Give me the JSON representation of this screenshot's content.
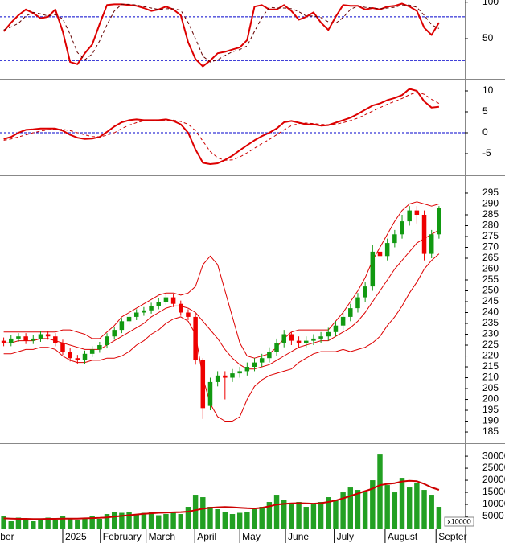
{
  "chart_data": [
    {
      "type": "line",
      "ylim": [
        -4,
        103
      ],
      "yticks": [
        50,
        100
      ],
      "xlim": [
        -0.5,
        62.5
      ],
      "reference_lines": [
        {
          "value": 80,
          "color": "#0000cc"
        },
        {
          "value": 20,
          "color": "#0000cc"
        }
      ],
      "series": [
        {
          "color": "#dd0000",
          "values": [
            60,
            72,
            82,
            90,
            85,
            78,
            80,
            90,
            60,
            18,
            15,
            30,
            42,
            70,
            96,
            97,
            97,
            96,
            95,
            92,
            88,
            90,
            94,
            90,
            82,
            45,
            22,
            12,
            20,
            30,
            32,
            35,
            38,
            48,
            94,
            96,
            90,
            90,
            96,
            88,
            76,
            80,
            86,
            72,
            62,
            80,
            96,
            95,
            95,
            90,
            92,
            90,
            94,
            95,
            98,
            94,
            88,
            65,
            55,
            72
          ]
        },
        {
          "color": "#660000",
          "dashed": true,
          "values": [
            62,
            66,
            71,
            81,
            86,
            84,
            81,
            83,
            77,
            56,
            31,
            21,
            29,
            47,
            69,
            88,
            97,
            97,
            96,
            94,
            92,
            90,
            91,
            91,
            89,
            72,
            50,
            26,
            18,
            21,
            27,
            32,
            35,
            40,
            60,
            79,
            93,
            92,
            92,
            91,
            87,
            81,
            81,
            79,
            73,
            71,
            79,
            90,
            95,
            93,
            92,
            91,
            92,
            93,
            96,
            96,
            93,
            82,
            69,
            64
          ]
        }
      ]
    },
    {
      "type": "line",
      "ylim": [
        -10,
        12.5
      ],
      "yticks": [
        -5,
        0,
        5,
        10
      ],
      "xlim": [
        -0.5,
        62.5
      ],
      "reference_lines": [
        {
          "value": 0,
          "color": "#0000cc"
        }
      ],
      "series": [
        {
          "color": "#dd0000",
          "values": [
            -1.5,
            -1,
            0,
            0.7,
            0.8,
            1,
            1,
            1,
            0.5,
            -0.5,
            -1.2,
            -1.5,
            -1.4,
            -1,
            0.2,
            1.5,
            2.5,
            3,
            3.2,
            3,
            3,
            3,
            3.2,
            2.8,
            2,
            0,
            -4,
            -7.2,
            -7.5,
            -7.3,
            -6.5,
            -5.5,
            -4.2,
            -3,
            -1.8,
            -0.8,
            0,
            1,
            2.5,
            2.8,
            2.4,
            2,
            2,
            1.7,
            1.8,
            2.4,
            3,
            3.6,
            4.5,
            5.5,
            6.5,
            7,
            7.8,
            8.3,
            9,
            10.5,
            10,
            7.5,
            6,
            6.2
          ]
        },
        {
          "color": "#cc0000",
          "dashed": true,
          "values": [
            -1.8,
            -1.5,
            -1,
            -0.5,
            0,
            0.4,
            0.7,
            0.8,
            0.8,
            0.5,
            0,
            -0.5,
            -0.9,
            -1,
            -0.6,
            0,
            1,
            1.8,
            2.4,
            2.8,
            2.9,
            3,
            3,
            3,
            2.7,
            2,
            0.5,
            -2,
            -4.5,
            -6,
            -6.6,
            -6.5,
            -5.8,
            -4.8,
            -3.7,
            -2.6,
            -1.6,
            -0.5,
            0.7,
            1.7,
            2.2,
            2.3,
            2.2,
            2,
            1.9,
            2,
            2.4,
            2.9,
            3.5,
            4.3,
            5.2,
            6,
            6.8,
            7.5,
            8.2,
            9.1,
            9.7,
            9.2,
            8,
            7
          ]
        }
      ]
    },
    {
      "type": "candlestick",
      "ylim": [
        180.2,
        302.4
      ],
      "yticks": [
        185,
        190,
        195,
        200,
        205,
        210,
        215,
        220,
        225,
        230,
        235,
        240,
        245,
        250,
        255,
        260,
        265,
        270,
        275,
        280,
        285,
        290,
        295
      ],
      "xlim": [
        -0.5,
        62.5
      ],
      "up_color": "#119911",
      "down_color": "#ee0000",
      "open": [
        227,
        226,
        228,
        229,
        227,
        228,
        230,
        229,
        226,
        222,
        219,
        218,
        221,
        223,
        225,
        229,
        232,
        236,
        238,
        240,
        241,
        243,
        245,
        247,
        244,
        240,
        238,
        218,
        197,
        208,
        211,
        210,
        212,
        213,
        215,
        217,
        219,
        222,
        226,
        230,
        227,
        226,
        227,
        228,
        229,
        231,
        234,
        238,
        242,
        247,
        252,
        268,
        266,
        272,
        276,
        282,
        287,
        285,
        267,
        276
      ],
      "high": [
        228.5,
        229.5,
        230.5,
        230.5,
        229.5,
        231.5,
        231.5,
        230.5,
        227.5,
        223.5,
        220.5,
        222.5,
        224.5,
        226.5,
        230.5,
        233.5,
        237.5,
        239.5,
        241.5,
        242.5,
        244.5,
        246.5,
        249,
        248.5,
        245.5,
        241.5,
        239.5,
        219,
        210,
        213,
        213,
        214,
        215,
        217,
        219,
        221,
        224,
        228,
        232,
        231,
        229,
        229,
        230,
        231,
        233,
        236,
        240,
        244,
        249,
        254,
        271,
        271,
        274,
        278,
        285,
        289,
        289,
        287,
        278,
        289
      ],
      "low": [
        224.5,
        224.5,
        226.5,
        225.5,
        225.5,
        226.5,
        227.5,
        224.5,
        220.5,
        217.5,
        216.5,
        216.5,
        219.5,
        221.5,
        223.5,
        227.5,
        230.5,
        234.5,
        236.5,
        238.5,
        239.5,
        241.5,
        243.5,
        242.5,
        238.5,
        236.5,
        216,
        191,
        195,
        206,
        200,
        208,
        210,
        211,
        213,
        215,
        217,
        220,
        224,
        225,
        224,
        224,
        225,
        226,
        227,
        229,
        232,
        236,
        240,
        245,
        250,
        262,
        264,
        270,
        274,
        280,
        281,
        264,
        265,
        274
      ],
      "close": [
        226,
        228,
        229,
        227,
        228,
        230,
        229,
        226,
        222,
        219,
        218,
        221,
        223,
        225,
        229,
        232,
        236,
        238,
        240,
        241,
        243,
        245,
        247,
        244,
        240,
        238,
        218,
        196,
        208,
        211,
        210,
        212,
        213,
        215,
        217,
        219,
        222,
        226,
        230,
        227,
        226,
        227,
        228,
        229,
        231,
        234,
        238,
        242,
        247,
        252,
        268,
        266,
        272,
        276,
        282,
        287,
        285,
        267,
        276,
        288
      ],
      "series": [
        {
          "color": "#dd0000",
          "values": [
            231,
            231,
            231,
            231,
            231,
            231,
            231,
            231,
            232,
            232,
            231,
            230,
            228,
            228,
            231,
            234,
            238,
            240,
            242,
            244,
            246,
            248,
            249,
            249,
            248,
            249,
            252,
            262,
            266,
            262,
            250,
            238,
            226,
            220,
            219,
            220,
            221,
            224,
            228,
            231,
            232,
            232,
            232,
            232,
            232,
            236,
            240,
            245,
            250,
            256,
            264,
            270,
            276,
            282,
            287,
            290,
            291,
            290,
            289,
            290
          ]
        },
        {
          "color": "#dd0000",
          "values": [
            226,
            226,
            227,
            227,
            227,
            228,
            228,
            227,
            226,
            225,
            224,
            223,
            223,
            223,
            225,
            227,
            229,
            231,
            233,
            235,
            238,
            240,
            242,
            243,
            243,
            242,
            240,
            236,
            232,
            228,
            223,
            219,
            216,
            214,
            214,
            215,
            216,
            218,
            220,
            222,
            224,
            225,
            226,
            227,
            227,
            229,
            231,
            233,
            236,
            240,
            245,
            250,
            255,
            260,
            264,
            268,
            272,
            274,
            276,
            278
          ]
        },
        {
          "color": "#dd0000",
          "values": [
            221,
            221,
            222,
            223,
            223,
            224,
            224,
            223,
            220,
            218,
            217,
            217,
            218,
            218,
            219,
            219,
            220,
            222,
            225,
            227,
            230,
            232,
            235,
            237,
            238,
            236,
            230,
            210,
            198,
            192,
            190,
            190,
            192,
            200,
            206,
            209,
            211,
            212,
            213,
            214,
            217,
            219,
            221,
            222,
            222,
            222,
            223,
            222,
            223,
            224,
            226,
            229,
            234,
            238,
            243,
            249,
            254,
            260,
            264,
            267
          ]
        }
      ]
    },
    {
      "type": "bar",
      "ylim": [
        0,
        34700
      ],
      "yticks": [
        5000,
        10000,
        15000,
        20000,
        25000,
        30000
      ],
      "xlim": [
        -0.5,
        62.5
      ],
      "unit_label": "x10000",
      "color": "#22a022",
      "values": [
        5000,
        3000,
        4500,
        3500,
        3000,
        4000,
        4500,
        3500,
        5000,
        4000,
        3500,
        4500,
        5000,
        4000,
        6000,
        7000,
        6500,
        7000,
        6000,
        6500,
        7000,
        5500,
        6000,
        6500,
        6000,
        9000,
        14000,
        13000,
        9000,
        8000,
        7000,
        6000,
        6500,
        7000,
        8000,
        9000,
        11000,
        14000,
        12000,
        10000,
        11000,
        9000,
        10000,
        11000,
        13000,
        12000,
        15000,
        17000,
        16000,
        15000,
        20000,
        31000,
        18000,
        15000,
        21000,
        17000,
        19000,
        16000,
        14000,
        9000
      ],
      "series": [
        {
          "color": "#cc0000",
          "values": [
            4200,
            4100,
            4000,
            4000,
            3900,
            3900,
            4000,
            4000,
            4100,
            4100,
            4100,
            4200,
            4300,
            4400,
            4600,
            4900,
            5200,
            5500,
            5800,
            6100,
            6300,
            6500,
            6600,
            6700,
            6800,
            7000,
            7600,
            8200,
            8600,
            8800,
            8900,
            8800,
            8600,
            8400,
            8300,
            8600,
            9200,
            9900,
            10200,
            10400,
            10500,
            10400,
            10300,
            10500,
            11000,
            11600,
            12500,
            13500,
            14500,
            15500,
            16500,
            18000,
            18500,
            18800,
            19500,
            19800,
            19600,
            18500,
            17000,
            16000
          ]
        }
      ],
      "xticks": [
        {
          "value": -0.8,
          "label": "ber"
        },
        {
          "value": 8.0,
          "label": "2025"
        },
        {
          "value": 13.1,
          "label": "February"
        },
        {
          "value": 19.3,
          "label": "March"
        },
        {
          "value": 25.9,
          "label": "April"
        },
        {
          "value": 32.0,
          "label": "May"
        },
        {
          "value": 38.2,
          "label": "June"
        },
        {
          "value": 44.8,
          "label": "July"
        },
        {
          "value": 51.7,
          "label": "August"
        },
        {
          "value": 58.6,
          "label": "Septer"
        }
      ]
    }
  ]
}
